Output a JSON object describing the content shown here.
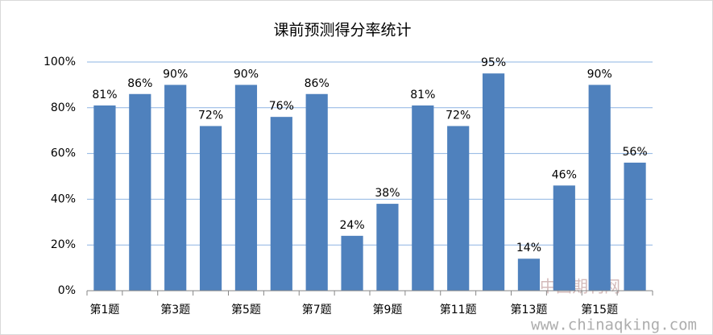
{
  "chart_data": {
    "type": "bar",
    "title": "课前预测得分率统计",
    "categories": [
      "第1题",
      null,
      "第3题",
      null,
      "第5题",
      null,
      "第7题",
      null,
      "第9题",
      null,
      "第11题",
      null,
      "第13题",
      null,
      "第15题",
      null
    ],
    "values": [
      81,
      86,
      90,
      72,
      90,
      76,
      86,
      24,
      38,
      81,
      72,
      95,
      14,
      46,
      90,
      56
    ],
    "value_labels": [
      "81%",
      "86%",
      "90%",
      "72%",
      "90%",
      "76%",
      "86%",
      "24%",
      "38%",
      "81%",
      "72%",
      "95%",
      "14%",
      "46%",
      "90%",
      "56%"
    ],
    "color": "#4f81bd",
    "ylim": [
      0,
      100
    ],
    "yticks": [
      {
        "value": 0,
        "label": "0%"
      },
      {
        "value": 20,
        "label": "20%"
      },
      {
        "value": 40,
        "label": "40%"
      },
      {
        "value": 60,
        "label": "60%"
      },
      {
        "value": 80,
        "label": "80%"
      },
      {
        "value": 100,
        "label": "100%"
      }
    ],
    "grid": true
  },
  "watermark": {
    "site_name": "中国期刊网",
    "url": "www.chinaqking.com"
  }
}
